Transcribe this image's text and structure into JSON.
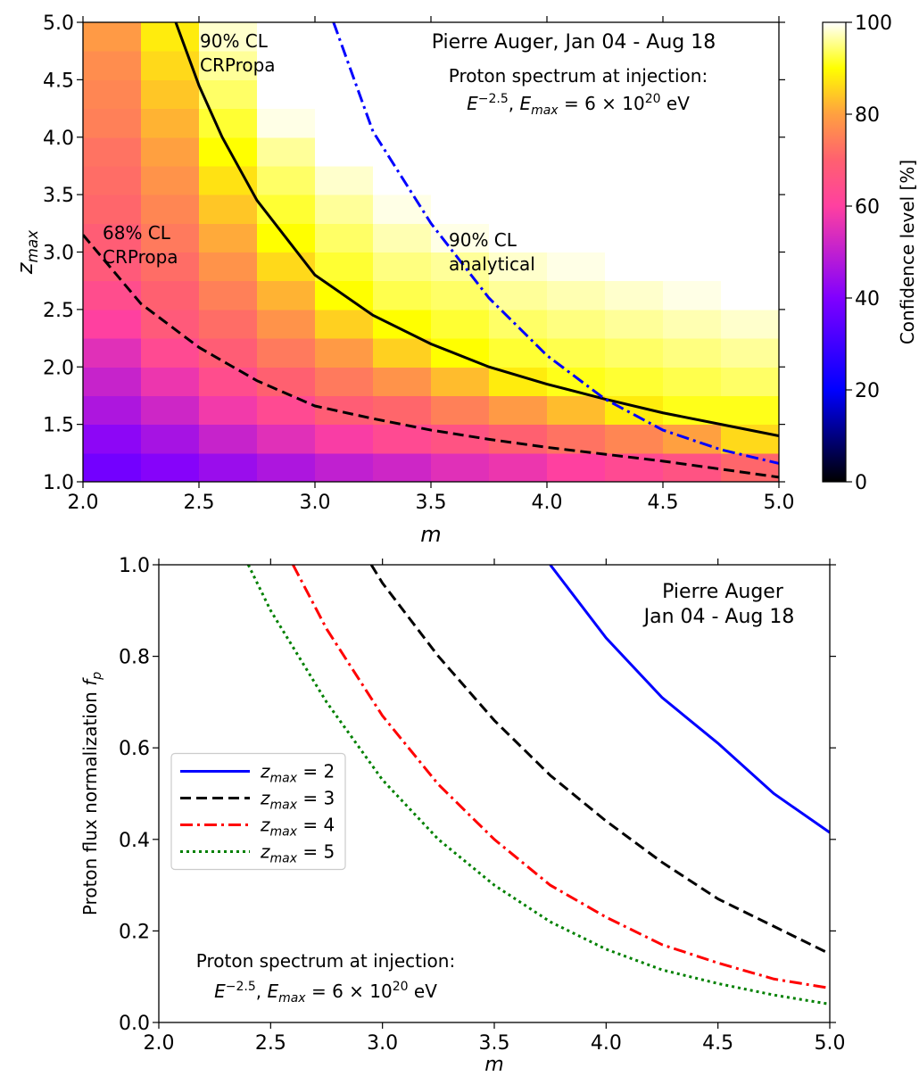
{
  "chart_data": [
    {
      "type": "heatmap",
      "x_label": "m",
      "y_label": [
        "z",
        "max"
      ],
      "xlim": [
        2,
        5
      ],
      "ylim": [
        1,
        5
      ],
      "xticks": [
        {
          "value": 2,
          "label": "2.0"
        },
        2.5,
        {
          "value": 3,
          "label": "3.0"
        },
        3.5,
        {
          "value": 4,
          "label": "4.0"
        },
        4.5,
        {
          "value": 5,
          "label": "5.0"
        }
      ],
      "yticks": [
        {
          "value": 1,
          "label": "1.0"
        },
        1.5,
        {
          "value": 2,
          "label": "2.0"
        },
        2.5,
        {
          "value": 3,
          "label": "3.0"
        },
        3.5,
        {
          "value": 4,
          "label": "4.0"
        },
        4.5,
        {
          "value": 5,
          "label": "5.0"
        }
      ],
      "x_edges": [
        2,
        2.25,
        2.5,
        2.75,
        3,
        3.25,
        3.5,
        3.75,
        4,
        4.25,
        4.5,
        4.75,
        5
      ],
      "y_edges": [
        1,
        1.25,
        1.5,
        1.75,
        2,
        2.25,
        2.5,
        2.75,
        3,
        3.25,
        3.5,
        3.75,
        4,
        4.25,
        4.5,
        4.75,
        5
      ],
      "z": [
        [
          38,
          41,
          44,
          47,
          50,
          52,
          55,
          57,
          60,
          63,
          66,
          71
        ],
        [
          42,
          46,
          51,
          55,
          59,
          63,
          66,
          70,
          73,
          76,
          80,
          86
        ],
        [
          47,
          52,
          58,
          63,
          69,
          71,
          75,
          79,
          83,
          88,
          91,
          91
        ],
        [
          51,
          57,
          64,
          70,
          74,
          78,
          83,
          88,
          91,
          92,
          93,
          94
        ],
        [
          55,
          63,
          69,
          74,
          79,
          85,
          90,
          92,
          93,
          94,
          95,
          96
        ],
        [
          60,
          68,
          72,
          78,
          85,
          90,
          92,
          94,
          95,
          96,
          97,
          98
        ],
        [
          64,
          70,
          75,
          82,
          90,
          93,
          94,
          96,
          97,
          98,
          99,
          100
        ],
        [
          68,
          72,
          78,
          86,
          92,
          95,
          96,
          98,
          99,
          100,
          100,
          100
        ],
        [
          69,
          74,
          81,
          90,
          94,
          97,
          99,
          100,
          100,
          100,
          100,
          100
        ],
        [
          71,
          76,
          84,
          92,
          96,
          99,
          100,
          100,
          100,
          100,
          100,
          100
        ],
        [
          72,
          78,
          87,
          94,
          98,
          100,
          100,
          100,
          100,
          100,
          100,
          100
        ],
        [
          73,
          80,
          90,
          96,
          100,
          100,
          100,
          100,
          100,
          100,
          100,
          100
        ],
        [
          75,
          82,
          92,
          99,
          100,
          100,
          100,
          100,
          100,
          100,
          100,
          100
        ],
        [
          76,
          84,
          94,
          100,
          100,
          100,
          100,
          100,
          100,
          100,
          100,
          100
        ],
        [
          77,
          86,
          96,
          100,
          100,
          100,
          100,
          100,
          100,
          100,
          100,
          100
        ],
        [
          79,
          88,
          98,
          100,
          100,
          100,
          100,
          100,
          100,
          100,
          100,
          100
        ]
      ],
      "clim": [
        0,
        100
      ],
      "colormap": [
        "#000000",
        "#000080",
        "#0000ff",
        "#4000ff",
        "#8000ff",
        "#c020d0",
        "#ff40a0",
        "#ff6070",
        "#ffa040",
        "#ffff00",
        "#ffffff"
      ],
      "colorbar_label": "Confidence level [%]",
      "colorbar_ticks": [
        0,
        20,
        40,
        60,
        80,
        100
      ],
      "lines": [
        {
          "color": "#000000",
          "linestyle": "dashed",
          "x": [
            2,
            2.25,
            2.5,
            2.75,
            3,
            3.25,
            3.5,
            3.75,
            4,
            4.25,
            4.5,
            4.75,
            5
          ],
          "y": [
            3.15,
            2.55,
            2.17,
            1.88,
            1.66,
            1.55,
            1.45,
            1.37,
            1.3,
            1.24,
            1.18,
            1.11,
            1.04
          ]
        },
        {
          "color": "#000000",
          "linestyle": "solid",
          "x": [
            2.4,
            2.5,
            2.6,
            2.75,
            3,
            3.25,
            3.5,
            3.75,
            4,
            4.25,
            4.5,
            4.75,
            5
          ],
          "y": [
            5,
            4.45,
            4,
            3.45,
            2.8,
            2.45,
            2.2,
            2,
            1.85,
            1.72,
            1.6,
            1.5,
            1.4
          ]
        },
        {
          "color": "#0000ff",
          "linestyle": "dashdot",
          "x": [
            3.08,
            3.25,
            3.5,
            3.75,
            4,
            4.25,
            4.5,
            4.75,
            5
          ],
          "y": [
            5,
            4.05,
            3.25,
            2.6,
            2.1,
            1.72,
            1.45,
            1.28,
            1.16
          ]
        }
      ],
      "annotations": [
        {
          "lines": [
            "90% CL",
            "CRPropa"
          ],
          "color": "#000000"
        },
        {
          "lines": [
            "68% CL",
            "CRPropa"
          ],
          "color": "#000000"
        },
        {
          "lines": [
            "90% CL",
            "analytical"
          ],
          "color": "#0000ff"
        }
      ],
      "title_lines": [
        "Pierre Auger, Jan 04 - Aug 18",
        "Proton spectrum at injection:"
      ],
      "formula": [
        "E",
        "−2.5",
        ", ",
        "E",
        "max",
        " = 6 × 10",
        "20",
        " eV"
      ]
    },
    {
      "type": "line",
      "x_label": "m",
      "y_label": [
        "Proton flux normalization ",
        "f",
        "p"
      ],
      "xlim": [
        2,
        5
      ],
      "ylim": [
        0,
        1
      ],
      "xticks": [
        {
          "value": 2,
          "label": "2.0"
        },
        2.5,
        {
          "value": 3,
          "label": "3.0"
        },
        3.5,
        {
          "value": 4,
          "label": "4.0"
        },
        4.5,
        {
          "value": 5,
          "label": "5.0"
        }
      ],
      "yticks": [
        {
          "value": 0,
          "label": "0.0"
        },
        0.2,
        0.4,
        0.6,
        0.8,
        {
          "value": 1,
          "label": "1.0"
        }
      ],
      "legend": "center left",
      "series": [
        {
          "name": [
            "z",
            "max",
            " =  2"
          ],
          "color": "#0000ff",
          "linestyle": "solid",
          "x": [
            3.75,
            4,
            4.25,
            4.5,
            4.75,
            5
          ],
          "values": [
            1,
            0.84,
            0.71,
            0.61,
            0.5,
            0.415
          ]
        },
        {
          "name": [
            "z",
            "max",
            " =  3"
          ],
          "color": "#000000",
          "linestyle": "dashed",
          "x": [
            2.95,
            3,
            3.25,
            3.5,
            3.75,
            4,
            4.25,
            4.5,
            4.75,
            5
          ],
          "values": [
            1,
            0.96,
            0.8,
            0.66,
            0.54,
            0.44,
            0.35,
            0.27,
            0.21,
            0.15
          ]
        },
        {
          "name": [
            "z",
            "max",
            " =  4"
          ],
          "color": "#ff0000",
          "linestyle": "dashdot",
          "x": [
            2.6,
            2.75,
            3,
            3.25,
            3.5,
            3.75,
            4,
            4.25,
            4.5,
            4.75,
            5
          ],
          "values": [
            1,
            0.86,
            0.67,
            0.52,
            0.4,
            0.3,
            0.23,
            0.17,
            0.13,
            0.095,
            0.075
          ]
        },
        {
          "name": [
            "z",
            "max",
            " =  5"
          ],
          "color": "#008000",
          "linestyle": "dotted",
          "x": [
            2.4,
            2.5,
            2.75,
            3,
            3.25,
            3.5,
            3.75,
            4,
            4.25,
            4.5,
            4.75,
            5
          ],
          "values": [
            1,
            0.9,
            0.7,
            0.53,
            0.4,
            0.3,
            0.22,
            0.16,
            0.115,
            0.085,
            0.06,
            0.04
          ]
        }
      ],
      "title_lines": [
        "Pierre Auger",
        "Jan 04 - Aug 18"
      ],
      "note": "Proton spectrum at injection:",
      "formula": [
        "E",
        "−2.5",
        ", ",
        "E",
        "max",
        " = 6 × 10",
        "20",
        " eV"
      ]
    }
  ]
}
